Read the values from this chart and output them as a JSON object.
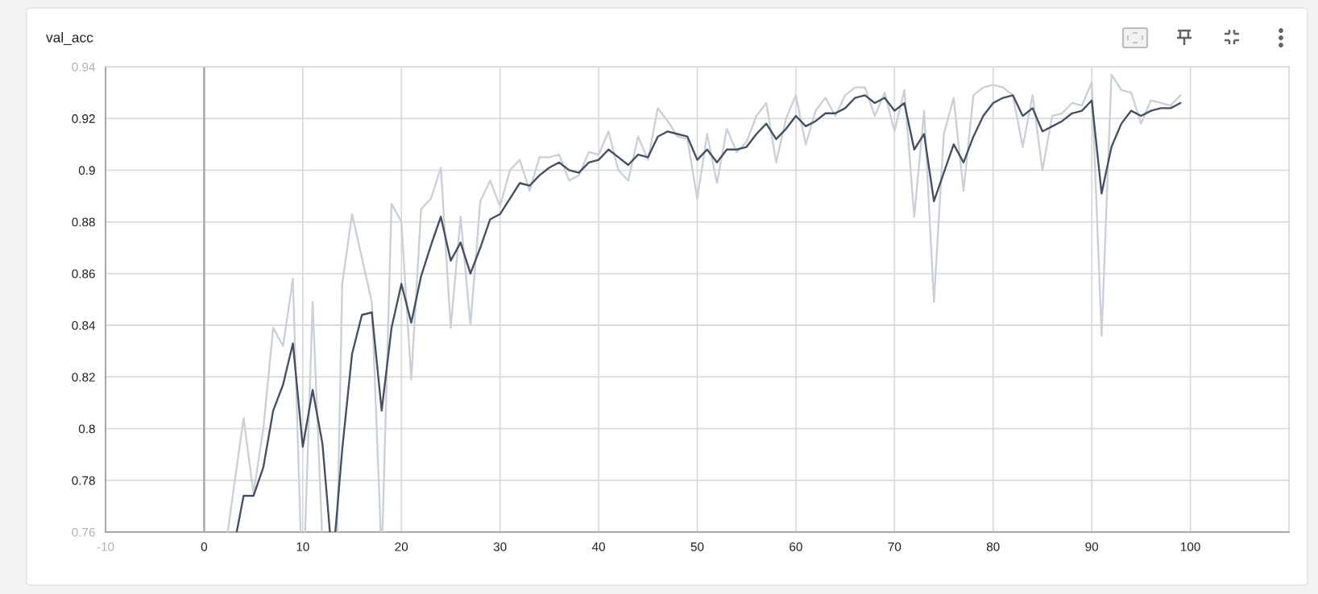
{
  "chart_data": {
    "type": "line",
    "title": "val_acc",
    "xlim": [
      -10,
      110
    ],
    "xticks": [
      {
        "value": -10,
        "label": "-10"
      },
      0,
      10,
      20,
      30,
      40,
      50,
      60,
      70,
      80,
      90,
      100
    ],
    "ylim": [
      0.76,
      0.94
    ],
    "yticks": [
      0.76,
      0.78,
      0.8,
      0.82,
      0.84,
      0.86,
      0.88,
      0.9,
      0.92,
      0.94
    ],
    "grid": true,
    "ref_lines": [
      {
        "axis": "x",
        "value": 0,
        "color": "#a9a9a9"
      }
    ],
    "series": [
      {
        "color": "#c9d0da",
        "x": [
          2.4,
          3,
          4,
          5,
          6,
          7,
          8,
          9,
          9.78,
          10,
          10.24,
          11,
          11.95,
          13,
          13.5,
          14,
          15,
          16,
          17,
          17.9,
          18,
          18.08,
          19,
          20,
          21,
          22,
          23,
          24,
          25,
          26,
          27,
          28,
          29,
          30,
          31,
          32,
          33,
          34,
          35,
          36,
          37,
          38,
          39,
          40,
          41,
          42,
          43,
          44,
          45,
          46,
          47,
          48,
          49,
          50,
          51,
          52,
          53,
          54,
          55,
          56,
          57,
          58,
          59,
          60,
          61,
          62,
          63,
          64,
          65,
          66,
          67,
          68,
          69,
          70,
          71,
          72,
          73,
          74,
          75,
          76,
          77,
          78,
          79,
          80,
          81,
          82,
          83,
          84,
          85,
          86,
          87,
          88,
          89,
          90,
          91,
          92,
          93,
          94,
          95,
          96,
          97,
          98,
          99
        ],
        "values": [
          0.76,
          0.777,
          0.804,
          0.775,
          0.8,
          0.839,
          0.832,
          0.858,
          0.76,
          null,
          0.76,
          0.849,
          0.76,
          null,
          0.76,
          0.856,
          0.883,
          0.866,
          0.849,
          0.76,
          null,
          0.76,
          0.887,
          0.88,
          0.819,
          0.885,
          0.889,
          0.901,
          0.839,
          0.882,
          0.84,
          0.888,
          0.896,
          0.886,
          0.9,
          0.904,
          0.892,
          0.905,
          0.905,
          0.906,
          0.896,
          0.898,
          0.907,
          0.906,
          0.915,
          0.9,
          0.896,
          0.913,
          0.904,
          0.924,
          0.919,
          0.913,
          0.912,
          0.889,
          0.914,
          0.895,
          0.916,
          0.907,
          0.911,
          0.921,
          0.926,
          0.903,
          0.92,
          0.929,
          0.91,
          0.923,
          0.928,
          0.921,
          0.929,
          0.932,
          0.932,
          0.921,
          0.93,
          0.915,
          0.931,
          0.882,
          0.923,
          0.849,
          0.914,
          0.928,
          0.892,
          0.929,
          0.932,
          0.933,
          0.932,
          0.929,
          0.909,
          0.929,
          0.9,
          0.921,
          0.922,
          0.926,
          0.925,
          0.934,
          0.836,
          0.937,
          0.931,
          0.93,
          0.918,
          0.927,
          0.926,
          0.925,
          0.929
        ]
      },
      {
        "color": "#425066",
        "x": [
          3.3,
          4,
          5,
          6,
          7,
          8,
          9,
          10,
          11,
          12,
          12.75,
          13,
          13.3,
          14,
          15,
          16,
          17,
          18,
          19,
          20,
          21,
          22,
          23,
          24,
          25,
          26,
          27,
          28,
          29,
          30,
          31,
          32,
          33,
          34,
          35,
          36,
          37,
          38,
          39,
          40,
          41,
          42,
          43,
          44,
          45,
          46,
          47,
          48,
          49,
          50,
          51,
          52,
          53,
          54,
          55,
          56,
          57,
          58,
          59,
          60,
          61,
          62,
          63,
          64,
          65,
          66,
          67,
          68,
          69,
          70,
          71,
          72,
          73,
          74,
          75,
          76,
          77,
          78,
          79,
          80,
          81,
          82,
          83,
          84,
          85,
          86,
          87,
          88,
          89,
          90,
          91,
          92,
          93,
          94,
          95,
          96,
          97,
          98,
          99
        ],
        "values": [
          0.76,
          0.774,
          0.774,
          0.785,
          0.807,
          0.817,
          0.833,
          0.793,
          0.815,
          0.794,
          0.76,
          null,
          0.76,
          0.792,
          0.829,
          0.844,
          0.845,
          0.807,
          0.839,
          0.856,
          0.841,
          0.859,
          0.871,
          0.882,
          0.865,
          0.872,
          0.86,
          0.87,
          0.881,
          0.883,
          0.889,
          0.895,
          0.894,
          0.898,
          0.901,
          0.903,
          0.9,
          0.899,
          0.903,
          0.904,
          0.908,
          0.905,
          0.902,
          0.906,
          0.905,
          0.913,
          0.915,
          0.914,
          0.913,
          0.904,
          0.908,
          0.903,
          0.908,
          0.908,
          0.909,
          0.914,
          0.918,
          0.912,
          0.916,
          0.921,
          0.917,
          0.919,
          0.922,
          0.922,
          0.924,
          0.928,
          0.929,
          0.926,
          0.928,
          0.923,
          0.926,
          0.908,
          0.914,
          0.888,
          0.899,
          0.91,
          0.903,
          0.913,
          0.921,
          0.926,
          0.928,
          0.929,
          0.921,
          0.924,
          0.915,
          0.917,
          0.919,
          0.922,
          0.923,
          0.927,
          0.891,
          0.909,
          0.918,
          0.923,
          0.921,
          0.923,
          0.924,
          0.924,
          0.926
        ]
      }
    ]
  }
}
